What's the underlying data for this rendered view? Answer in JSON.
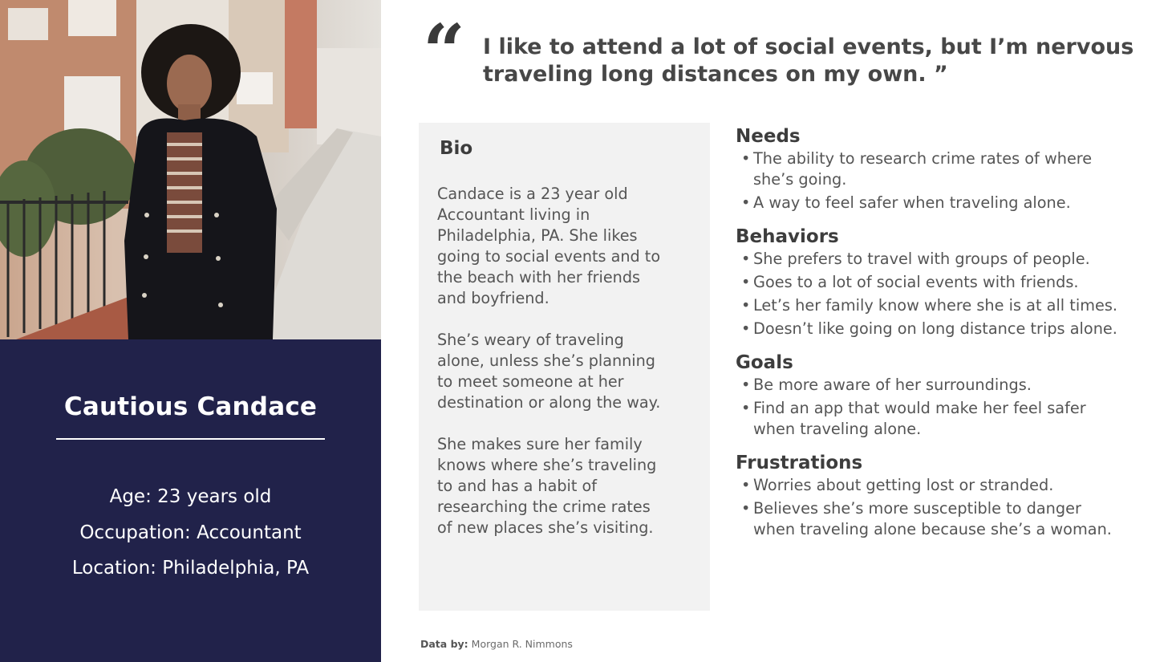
{
  "quote": "I like to attend a lot of social events, but I’m nervous traveling long distances on my own. ”",
  "profile": {
    "name": "Cautious Candace",
    "age": "Age: 23 years old",
    "occupation": "Occupation: Accountant",
    "location": "Location: Philadelphia, PA"
  },
  "bio": {
    "title": "Bio",
    "paragraphs": [
      "Candace is a 23 year old\nAccountant living in\nPhiladelphia, PA. She likes\ngoing to social events and to\nthe beach with her friends\nand boyfriend.",
      "She’s weary of traveling\nalone, unless she’s planning\nto meet someone at her\ndestination or along the way.",
      "She makes sure her family\nknows where she’s traveling\nto and has a habit of\nresearching the crime rates\nof new places she’s visiting."
    ]
  },
  "sections": [
    {
      "title": "Needs",
      "items": [
        "The ability to research crime rates of where\nshe’s going.",
        "A way to feel safer when traveling alone."
      ]
    },
    {
      "title": "Behaviors",
      "items": [
        "She prefers to travel with groups of people.",
        "Goes to a lot of social events with friends.",
        "Let’s her family know where she is at all times.",
        "Doesn’t like going on long distance trips alone."
      ]
    },
    {
      "title": "Goals",
      "items": [
        "Be more aware of her surroundings.",
        "Find an app that would make her feel safer\nwhen traveling alone."
      ]
    },
    {
      "title": "Frustrations",
      "items": [
        "Worries about getting lost or stranded.",
        "Believes she’s more susceptible to danger\nwhen traveling alone because she’s a woman."
      ]
    }
  ],
  "credit": {
    "label": "Data by:",
    "author": "Morgan R. Nimmons"
  },
  "colors": {
    "profile_bg": "#21224a",
    "bio_bg": "#f2f2f2",
    "text": "#3d3d3d"
  }
}
